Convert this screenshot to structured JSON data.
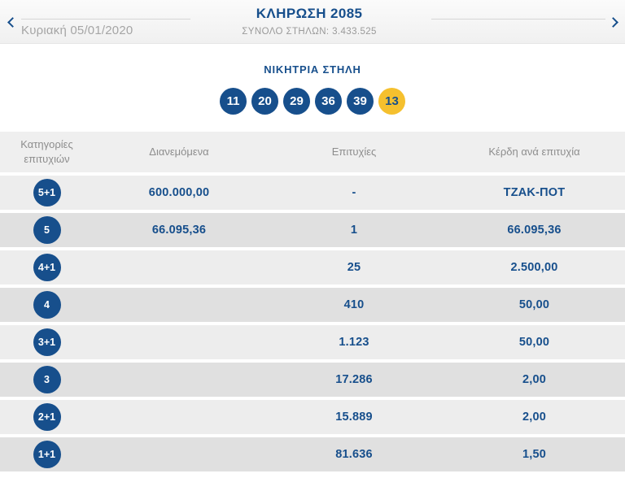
{
  "header": {
    "title": "ΚΛΗΡΩΣΗ 2085",
    "subtitle": "ΣΥΝΟΛΟ ΣΤΗΛΩΝ: 3.433.525",
    "date": "Κυριακή 05/01/2020",
    "prev_icon": "chevron-left",
    "next_icon": "chevron-right"
  },
  "winning": {
    "label": "ΝΙΚΗΤΡΙΑ ΣΤΗΛΗ",
    "numbers": [
      "11",
      "20",
      "29",
      "36",
      "39"
    ],
    "joker": "13"
  },
  "table": {
    "columns": [
      "Κατηγορίες επιτυχιών",
      "Διανεμόμενα",
      "Επιτυχίες",
      "Κέρδη ανά επιτυχία"
    ],
    "rows": [
      {
        "category": "5+1",
        "distributed": "600.000,00",
        "winners": "-",
        "prize": "ΤΖΑΚ-ΠΟΤ"
      },
      {
        "category": "5",
        "distributed": "66.095,36",
        "winners": "1",
        "prize": "66.095,36"
      },
      {
        "category": "4+1",
        "distributed": "",
        "winners": "25",
        "prize": "2.500,00"
      },
      {
        "category": "4",
        "distributed": "",
        "winners": "410",
        "prize": "50,00"
      },
      {
        "category": "3+1",
        "distributed": "",
        "winners": "1.123",
        "prize": "50,00"
      },
      {
        "category": "3",
        "distributed": "",
        "winners": "17.286",
        "prize": "2,00"
      },
      {
        "category": "2+1",
        "distributed": "",
        "winners": "15.889",
        "prize": "2,00"
      },
      {
        "category": "1+1",
        "distributed": "",
        "winners": "81.636",
        "prize": "1,50"
      }
    ]
  },
  "colors": {
    "navy": "#174f8c",
    "yellow": "#f5c02e",
    "gray_text": "#9d9d9d",
    "row_light": "#ededed",
    "row_dark": "#e0e0e0",
    "header_row": "#efefef"
  }
}
